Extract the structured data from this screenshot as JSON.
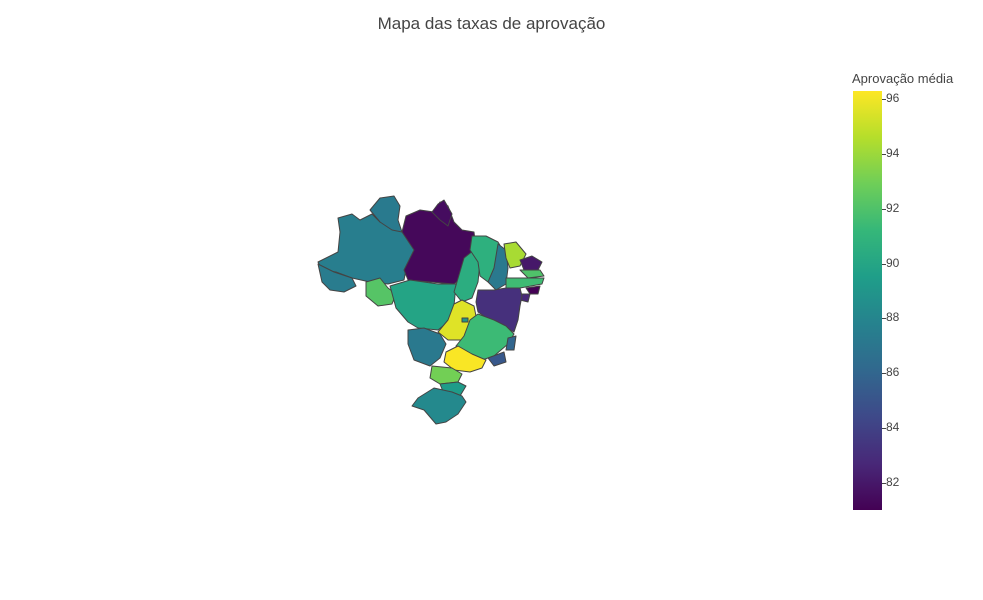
{
  "title": "Mapa das taxas de aprovação",
  "colorbar": {
    "title": "Aprovação média",
    "ticks": [
      "82",
      "84",
      "86",
      "88",
      "90",
      "92",
      "94",
      "96"
    ],
    "range": [
      81.0,
      96.3
    ],
    "colorscale": "Viridis"
  },
  "chart_data": {
    "type": "choropleth",
    "regions": [
      {
        "name": "AM",
        "value": 87.5
      },
      {
        "name": "RR",
        "value": 87.3
      },
      {
        "name": "PA",
        "value": 81.3
      },
      {
        "name": "AP",
        "value": 81.5
      },
      {
        "name": "AC",
        "value": 87.4
      },
      {
        "name": "RO",
        "value": 92.2
      },
      {
        "name": "MT",
        "value": 89.9
      },
      {
        "name": "TO",
        "value": 90.5
      },
      {
        "name": "MA",
        "value": 90.7
      },
      {
        "name": "PI",
        "value": 87.2
      },
      {
        "name": "CE",
        "value": 94.3
      },
      {
        "name": "RN",
        "value": 82.0
      },
      {
        "name": "PB",
        "value": 92.0
      },
      {
        "name": "PE",
        "value": 91.5
      },
      {
        "name": "AL",
        "value": 81.0
      },
      {
        "name": "SE",
        "value": 82.7
      },
      {
        "name": "BA",
        "value": 83.1
      },
      {
        "name": "GO",
        "value": 95.6
      },
      {
        "name": "DF",
        "value": 89.0
      },
      {
        "name": "MS",
        "value": 87.2
      },
      {
        "name": "MG",
        "value": 91.4
      },
      {
        "name": "ES",
        "value": 86.0
      },
      {
        "name": "RJ",
        "value": 85.2
      },
      {
        "name": "SP",
        "value": 96.2
      },
      {
        "name": "PR",
        "value": 93.0
      },
      {
        "name": "SC",
        "value": 89.4
      },
      {
        "name": "RS",
        "value": 88.2
      }
    ]
  }
}
